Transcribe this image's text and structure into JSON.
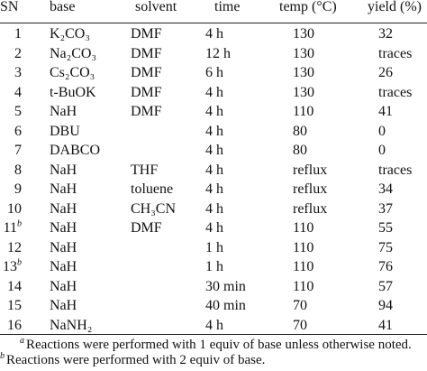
{
  "table": {
    "headers": [
      "SN",
      "base",
      "solvent",
      "time",
      "temp (°C)",
      "yield (%)"
    ],
    "rows": [
      {
        "sn": "1",
        "base": "K₂CO₃",
        "solvent": "DMF",
        "time": "4 h",
        "temp": "130",
        "yield": "32"
      },
      {
        "sn": "2",
        "base": "Na₂CO₃",
        "solvent": "DMF",
        "time": "12 h",
        "temp": "130",
        "yield": "traces"
      },
      {
        "sn": "3",
        "base": "Cs₂CO₃",
        "solvent": "DMF",
        "time": "6 h",
        "temp": "130",
        "yield": "26"
      },
      {
        "sn": "4",
        "base": "t-BuOK",
        "solvent": "DMF",
        "time": "4 h",
        "temp": "130",
        "yield": "traces"
      },
      {
        "sn": "5",
        "base": "NaH",
        "solvent": "DMF",
        "time": "4 h",
        "temp": "110",
        "yield": "41"
      },
      {
        "sn": "6",
        "base": "DBU",
        "time": "4 h",
        "temp": "80",
        "yield": "0"
      },
      {
        "sn": "7",
        "base": "DABCO",
        "time": "4 h",
        "temp": "80",
        "yield": "0"
      },
      {
        "sn": "8",
        "base": "NaH",
        "solvent": "THF",
        "time": "4 h",
        "temp": "reflux",
        "yield": "traces"
      },
      {
        "sn": "9",
        "base": "NaH",
        "solvent": "toluene",
        "time": "4 h",
        "temp": "reflux",
        "yield": "34"
      },
      {
        "sn": "10",
        "base": "NaH",
        "solvent": "CH₃CN",
        "time": "4 h",
        "temp": "reflux",
        "yield": "37"
      },
      {
        "sn": "11",
        "note": "b",
        "base": "NaH",
        "solvent": "DMF",
        "time": "4 h",
        "temp": "110",
        "yield": "55"
      },
      {
        "sn": "12",
        "base": "NaH",
        "time": "1 h",
        "temp": "110",
        "yield": "75"
      },
      {
        "sn": "13",
        "note": "b",
        "base": "NaH",
        "time": "1 h",
        "temp": "110",
        "yield": "76"
      },
      {
        "sn": "14",
        "base": "NaH",
        "time": "30 min",
        "temp": "110",
        "yield": "57"
      },
      {
        "sn": "15",
        "base": "NaH",
        "time": "40 min",
        "temp": "70",
        "yield": "94"
      },
      {
        "sn": "16",
        "base": "NaNH₂",
        "time": "4 h",
        "temp": "70",
        "yield": "41"
      }
    ],
    "footnotes": [
      {
        "mark": "a",
        "text": "Reactions were performed with 1 equiv of base unless otherwise noted."
      },
      {
        "mark": "b",
        "text": "Reactions were performed with 2 equiv of base."
      }
    ]
  }
}
